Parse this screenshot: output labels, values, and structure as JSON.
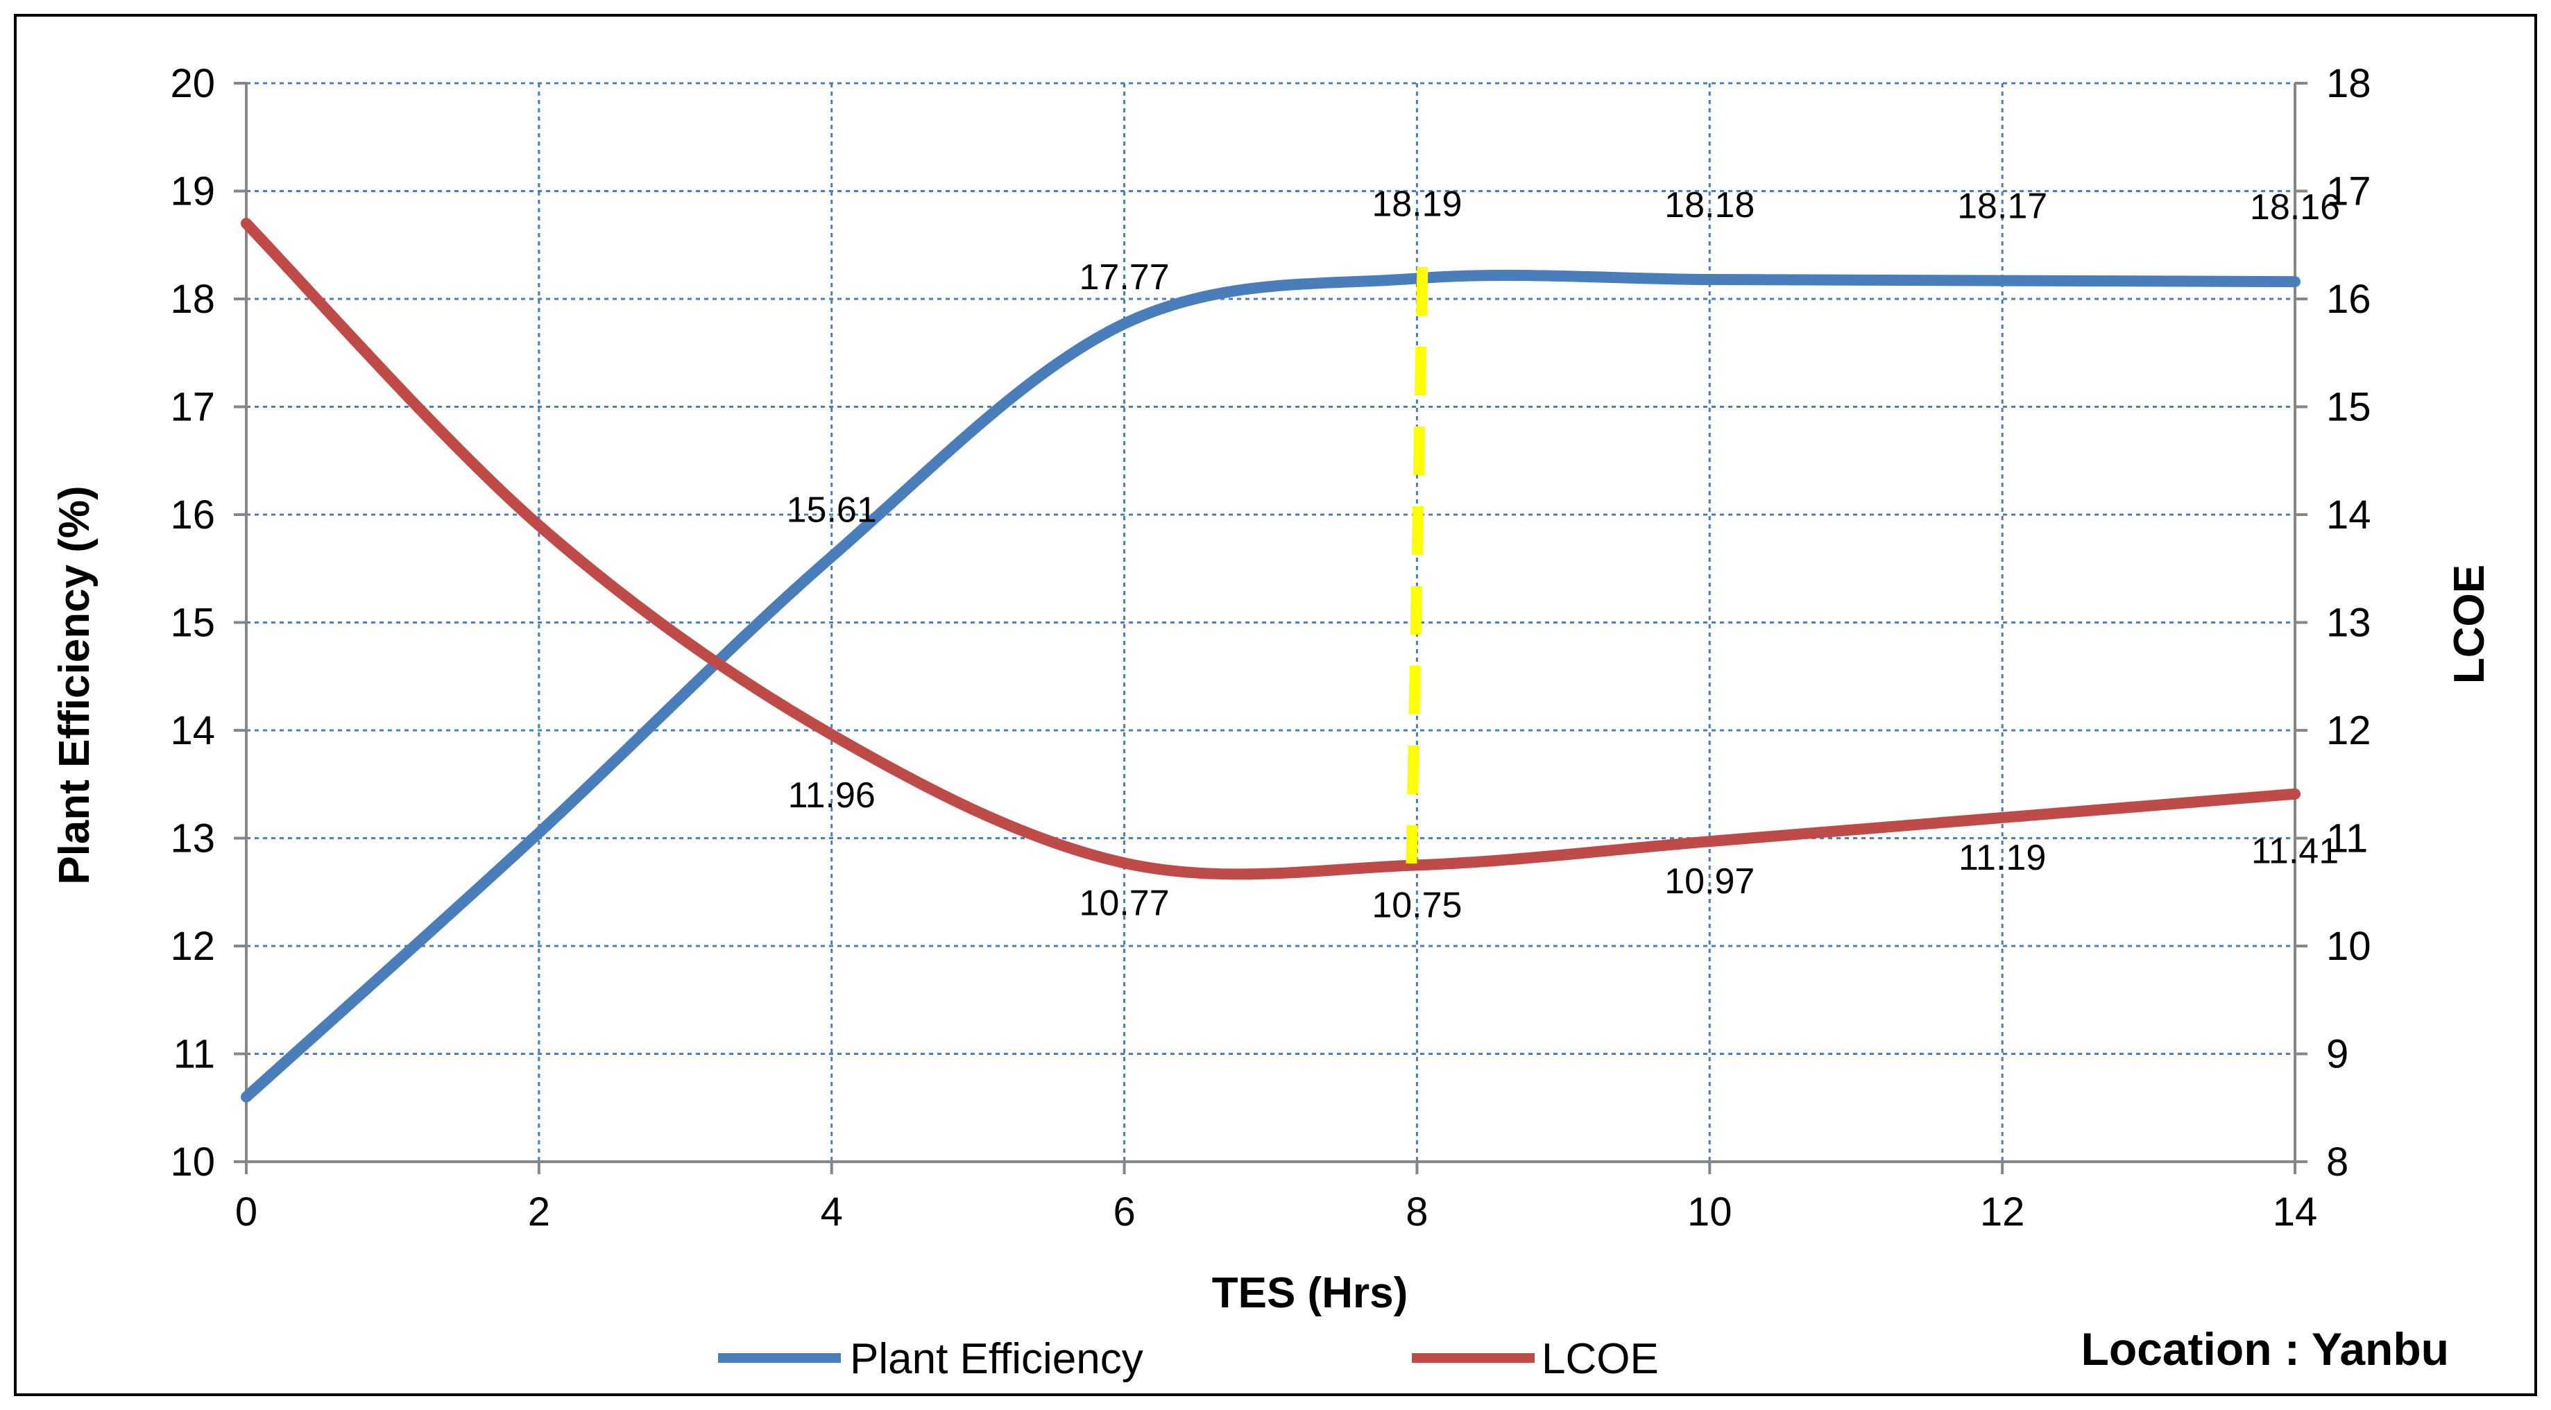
{
  "chart_data": {
    "type": "line",
    "xlabel": "TES (Hrs)",
    "ylabel": "Plant Efficiency (%)",
    "y2label": "LCOE",
    "xlim": [
      0,
      14
    ],
    "ylim": [
      10,
      20
    ],
    "y2lim": [
      8,
      18
    ],
    "x_ticks": [
      "0",
      "2",
      "4",
      "6",
      "8",
      "10",
      "12",
      "14"
    ],
    "y_ticks": [
      "10",
      "11",
      "12",
      "13",
      "14",
      "15",
      "16",
      "17",
      "18",
      "19",
      "20"
    ],
    "y2_ticks": [
      "8",
      "9",
      "10",
      "11",
      "12",
      "13",
      "14",
      "15",
      "16",
      "17",
      "18"
    ],
    "grid": true,
    "legend_position": "bottom",
    "annotation": "Location : Yanbu",
    "highlight_x": 8,
    "highlight_color": "#FFFF00",
    "series": [
      {
        "name": "Plant Efficiency",
        "axis": "left",
        "color": "#4A7EBB",
        "x": [
          0,
          2,
          4,
          6,
          8,
          10,
          12,
          14
        ],
        "values": [
          10.6,
          13.05,
          15.61,
          17.77,
          18.19,
          18.18,
          18.17,
          18.16
        ],
        "labels": [
          null,
          null,
          "15.61",
          "17.77",
          "18.19",
          "18.18",
          "18.17",
          "18.16"
        ]
      },
      {
        "name": "LCOE",
        "axis": "right",
        "color": "#BE4B48",
        "x": [
          0,
          2,
          4,
          6,
          8,
          10,
          12,
          14
        ],
        "values": [
          16.7,
          13.9,
          11.96,
          10.77,
          10.75,
          10.97,
          11.19,
          11.41
        ],
        "labels": [
          null,
          null,
          "11.96",
          "10.77",
          "10.75",
          "10.97",
          "11.19",
          "11.41"
        ]
      }
    ]
  }
}
